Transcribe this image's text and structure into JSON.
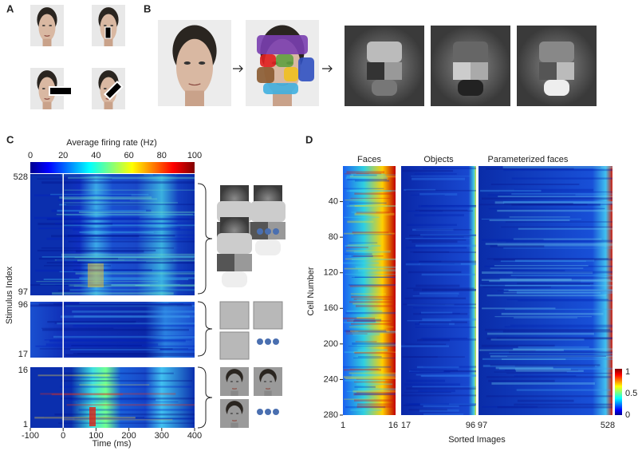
{
  "panels": {
    "a": "A",
    "b": "B",
    "c": "C",
    "d": "D"
  },
  "panel_c": {
    "colorbar_title": "Average firing rate (Hz)",
    "colorbar_ticks": [
      0,
      20,
      40,
      60,
      80,
      100
    ],
    "y_label": "Stimulus Index",
    "y_ticks": [
      528,
      97,
      96,
      17,
      16,
      1
    ],
    "x_ticks": [
      -100,
      0,
      100,
      200,
      300,
      400
    ],
    "x_label": "Time (ms)"
  },
  "panel_d": {
    "column_titles": [
      "Faces",
      "Objects",
      "Parameterized faces"
    ],
    "y_label": "Cell Number",
    "y_ticks": [
      40,
      80,
      120,
      160,
      200,
      240,
      280
    ],
    "x_ticks": [
      1,
      16,
      17,
      96,
      97,
      528
    ],
    "x_label": "Sorted Images",
    "colorbar_ticks": [
      0,
      0.5,
      1
    ]
  }
}
